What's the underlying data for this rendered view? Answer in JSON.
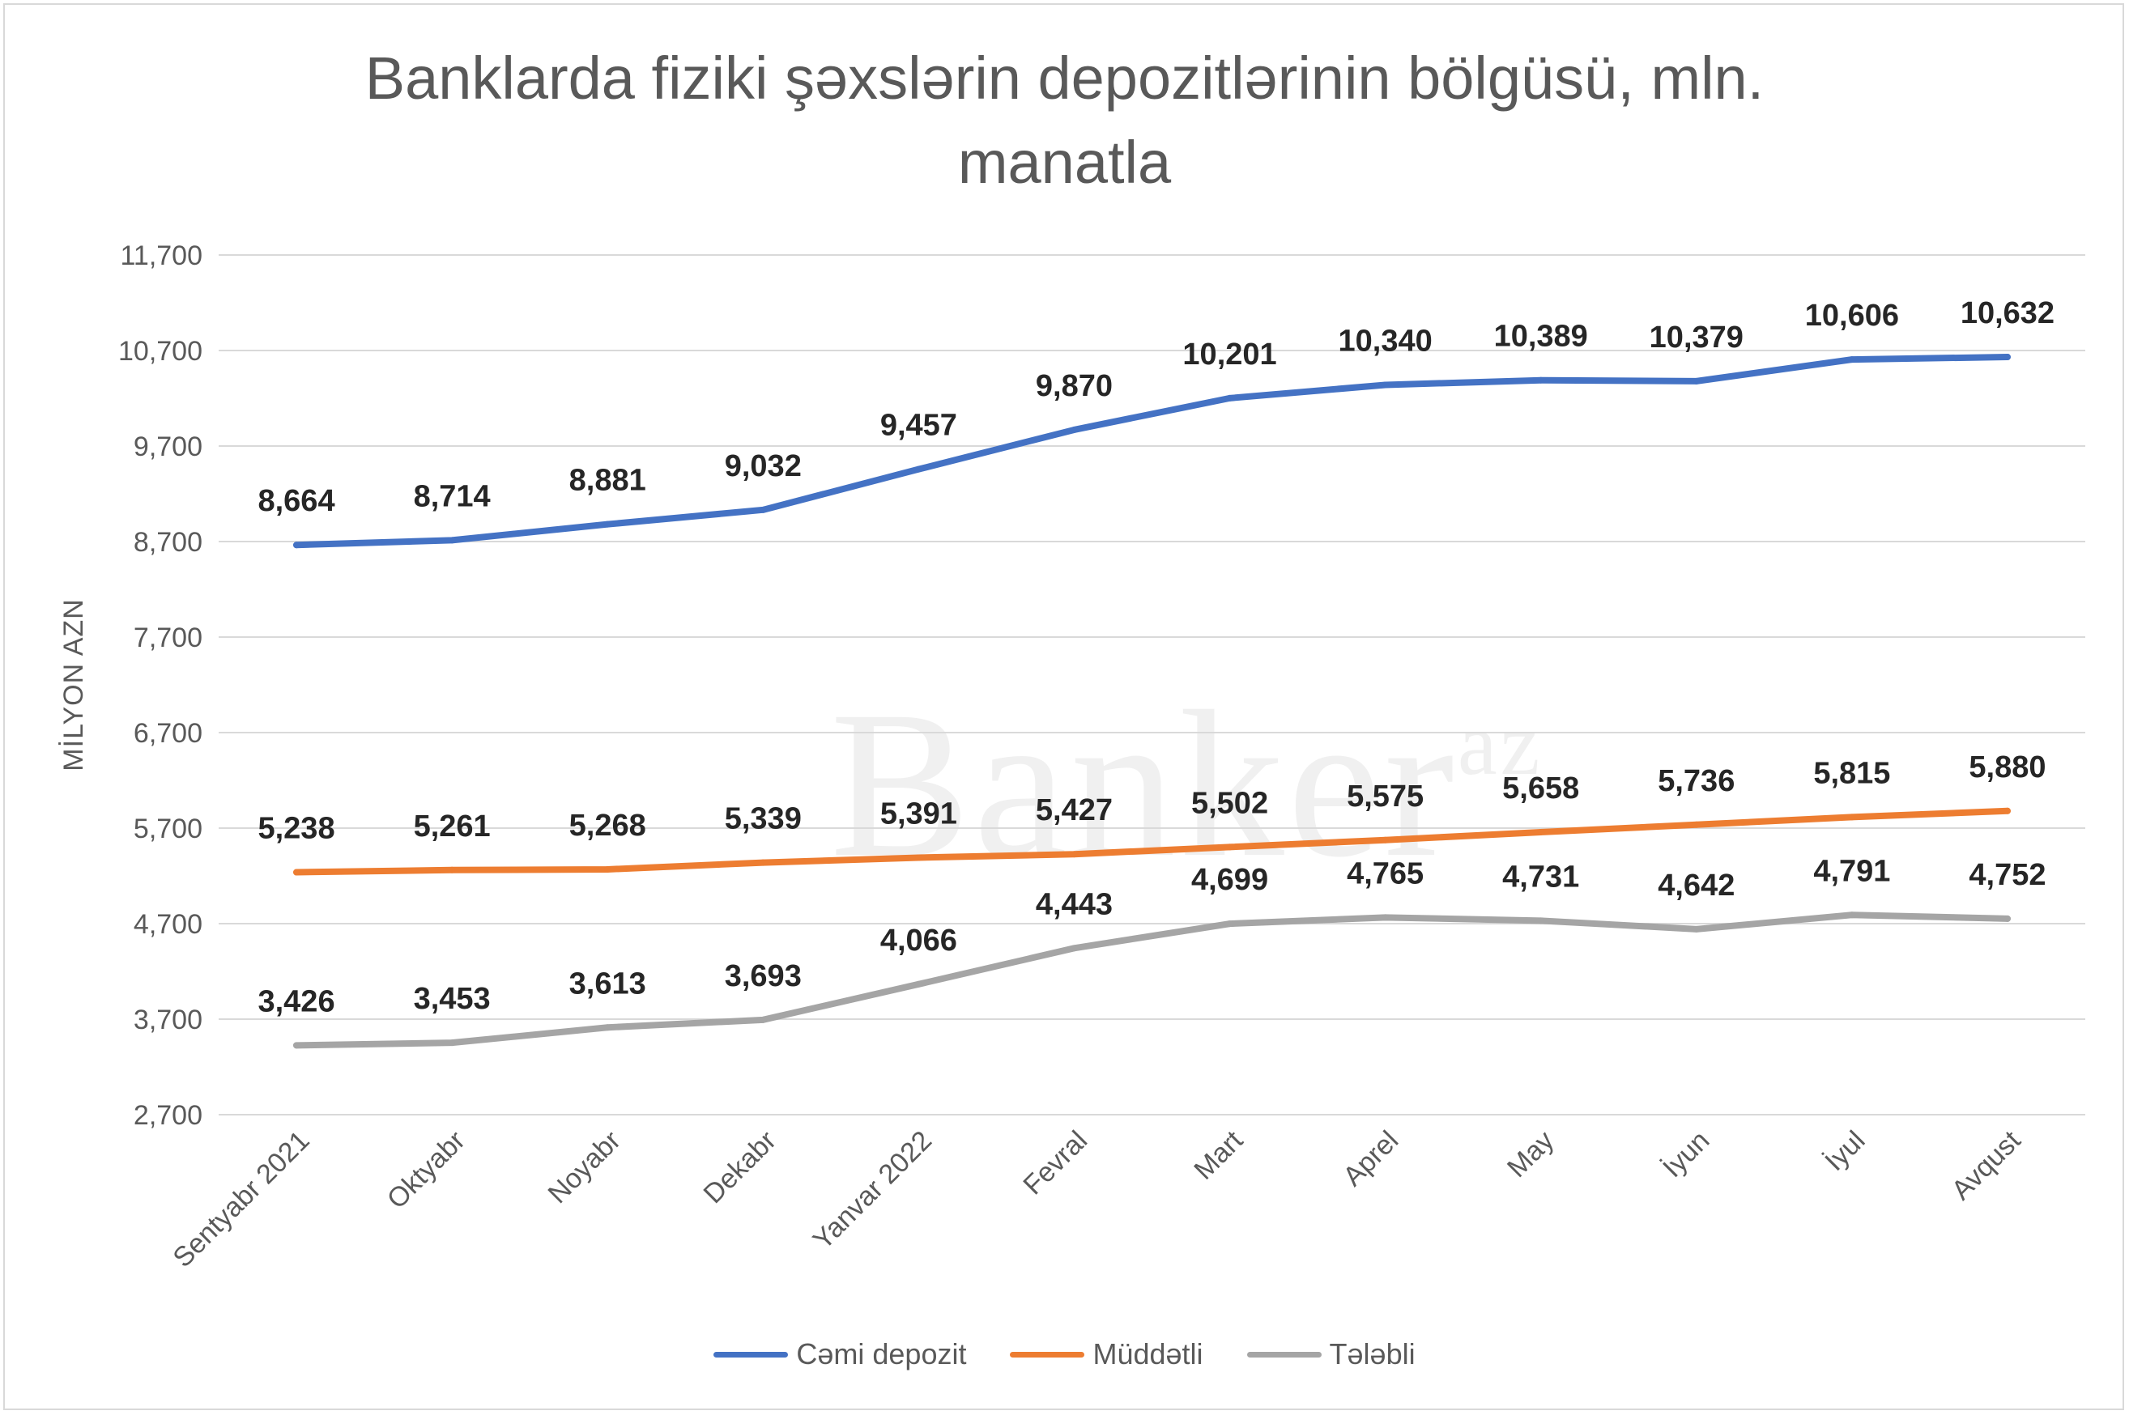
{
  "chart_data": {
    "type": "line",
    "title": "Banklarda fiziki şəxslərin depozitlərinin bölgüsü, mln. manatla",
    "title_lines": [
      "Banklarda fiziki şəxslərin depozitlərinin bölgüsü, mln.",
      "manatla"
    ],
    "ylabel": "MİLYON AZN",
    "xlabel": "",
    "ylim": [
      2700,
      11700
    ],
    "yticks": [
      "2,700",
      "3,700",
      "4,700",
      "5,700",
      "6,700",
      "7,700",
      "8,700",
      "9,700",
      "10,700",
      "11,700"
    ],
    "ytick_values": [
      2700,
      3700,
      4700,
      5700,
      6700,
      7700,
      8700,
      9700,
      10700,
      11700
    ],
    "grid": true,
    "legend_position": "bottom",
    "categories": [
      "Sentyabr 2021",
      "Oktyabr",
      "Noyabr",
      "Dekabr",
      "Yanvar 2022",
      "Fevral",
      "Mart",
      "Aprel",
      "May",
      "İyun",
      "İyul",
      "Avqust"
    ],
    "series": [
      {
        "name": "Cəmi depozit",
        "color": "#4472c4",
        "values": [
          8664,
          8714,
          8881,
          9032,
          9457,
          9870,
          10201,
          10340,
          10389,
          10379,
          10606,
          10632
        ],
        "labels": [
          "8,664",
          "8,714",
          "8,881",
          "9,032",
          "9,457",
          "9,870",
          "10,201",
          "10,340",
          "10,389",
          "10,379",
          "10,606",
          "10,632"
        ]
      },
      {
        "name": "Müddətli",
        "color": "#ed7d31",
        "values": [
          5238,
          5261,
          5268,
          5339,
          5391,
          5427,
          5502,
          5575,
          5658,
          5736,
          5815,
          5880
        ],
        "labels": [
          "5,238",
          "5,261",
          "5,268",
          "5,339",
          "5,391",
          "5,427",
          "5,502",
          "5,575",
          "5,658",
          "5,736",
          "5,815",
          "5,880"
        ]
      },
      {
        "name": "Tələbli",
        "color": "#a5a5a5",
        "values": [
          3426,
          3453,
          3613,
          3693,
          4066,
          4443,
          4699,
          4765,
          4731,
          4642,
          4791,
          4752
        ],
        "labels": [
          "3,426",
          "3,453",
          "3,613",
          "3,693",
          "4,066",
          "4,443",
          "4,699",
          "4,765",
          "4,731",
          "4,642",
          "4,791",
          "4,752"
        ]
      }
    ]
  },
  "watermark": {
    "text": "Banker",
    "suffix": "az"
  }
}
